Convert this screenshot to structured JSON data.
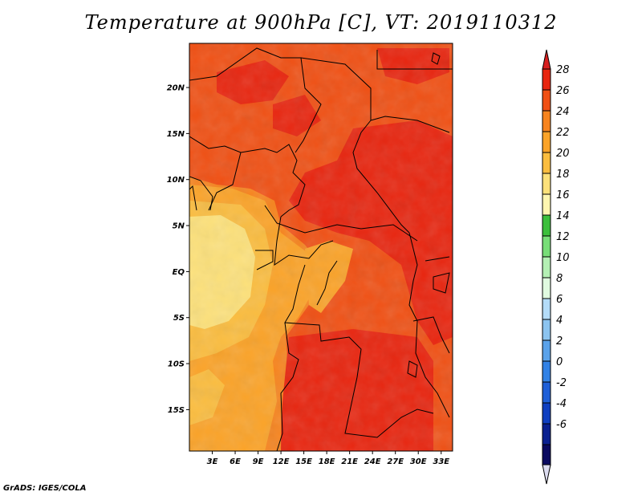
{
  "title": "Temperature at 900hPa [C], VT: 2019110312",
  "footer": "GrADS: IGES/COLA",
  "map": {
    "lat_labels": [
      {
        "text": "20N",
        "lat": 20
      },
      {
        "text": "15N",
        "lat": 15
      },
      {
        "text": "10N",
        "lat": 10
      },
      {
        "text": "5N",
        "lat": 5
      },
      {
        "text": "EQ",
        "lat": 0
      },
      {
        "text": "5S",
        "lat": -5
      },
      {
        "text": "10S",
        "lat": -10
      },
      {
        "text": "15S",
        "lat": -15
      }
    ],
    "lon_labels": [
      {
        "text": "3E",
        "lon": 3
      },
      {
        "text": "6E",
        "lon": 6
      },
      {
        "text": "9E",
        "lon": 9
      },
      {
        "text": "12E",
        "lon": 12
      },
      {
        "text": "15E",
        "lon": 15
      },
      {
        "text": "18E",
        "lon": 18
      },
      {
        "text": "21E",
        "lon": 21
      },
      {
        "text": "24E",
        "lon": 24
      },
      {
        "text": "27E",
        "lon": 27
      },
      {
        "text": "30E",
        "lon": 30
      },
      {
        "text": "33E",
        "lon": 33
      }
    ]
  },
  "colorbar": {
    "levels": [
      28,
      26,
      24,
      22,
      20,
      18,
      16,
      14,
      12,
      10,
      8,
      6,
      4,
      2,
      0,
      -2,
      -4,
      -6
    ],
    "labels": [
      "28",
      "26",
      "24",
      "22",
      "20",
      "18",
      "16",
      "14",
      "12",
      "10",
      "8",
      "6",
      "4",
      "2",
      "0",
      "-2",
      "-4",
      "-6"
    ],
    "colors_top_to_bottom": [
      "#e8250f",
      "#f05014",
      "#f7841e",
      "#fba328",
      "#fbbd3f",
      "#fde17a",
      "#fff6b0",
      "#3cbf3c",
      "#78de78",
      "#b4f0b4",
      "#e0fae0",
      "#b4dcf8",
      "#8cc4f0",
      "#5aa2ea",
      "#3282e6",
      "#1e5fd8",
      "#0f3fc0",
      "#0a2090",
      "#0a0a60"
    ],
    "over_color": "#d71f1f",
    "under_color": "#dcdcf0"
  }
}
